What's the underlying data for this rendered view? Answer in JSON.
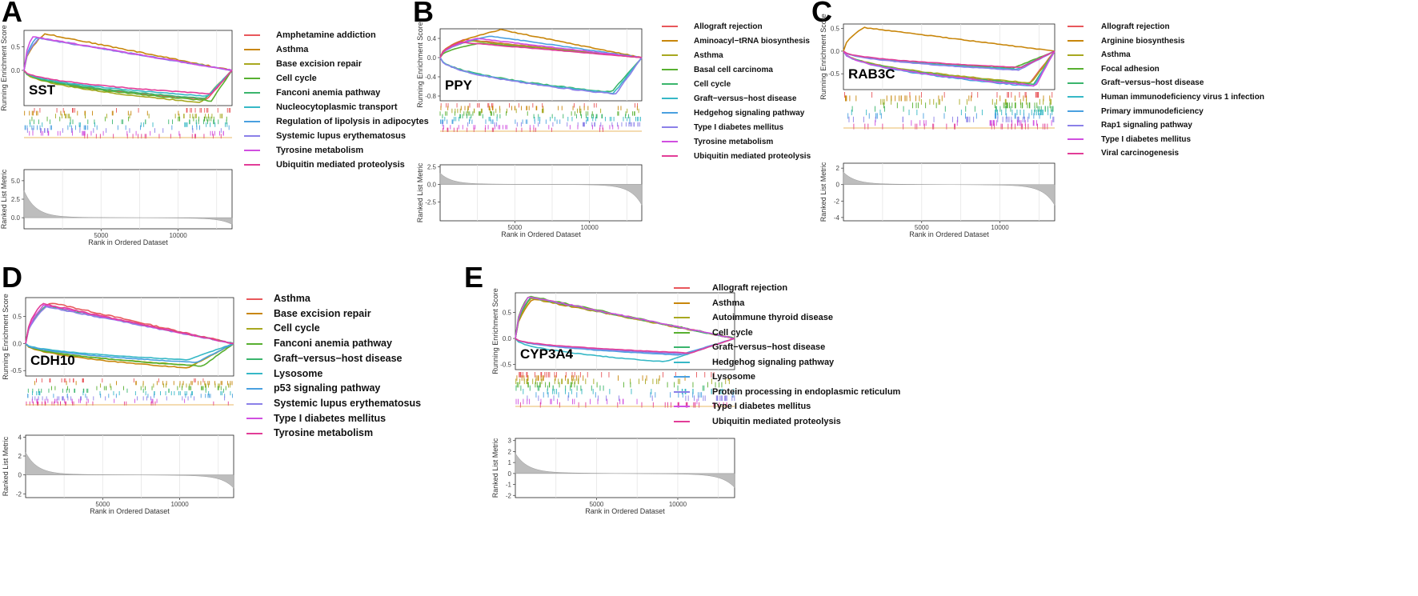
{
  "xlabel": "Rank in Ordered Dataset",
  "ylabel_top": "Running Enrichment Score",
  "ylabel_bottom": "Ranked List Metric",
  "palette": [
    "#e8575b",
    "#c8860b",
    "#a8a820",
    "#58b030",
    "#3ab56c",
    "#36b8c6",
    "#4aa0e0",
    "#8b80e8",
    "#d04fe0",
    "#e23d98"
  ],
  "chart_data": [
    {
      "id": "A",
      "type": "line",
      "title": "SST",
      "letter": "A",
      "x_ticks": [
        5000,
        10000
      ],
      "x_range": [
        0,
        13500
      ],
      "es_ticks": [
        "0.0",
        "0.5"
      ],
      "es_tick_values": [
        0.0,
        0.5
      ],
      "es_range": [
        -0.75,
        0.85
      ],
      "metric_ticks": [
        "0.0",
        "2.5",
        "5.0"
      ],
      "metric_tick_values": [
        0,
        2.5,
        5.0
      ],
      "metric_range": [
        -1.5,
        6.5
      ],
      "series": [
        {
          "name": "Amphetamine addiction",
          "color": "#e8575b",
          "sign": -1,
          "peak": -0.62,
          "peakx": 0.88
        },
        {
          "name": "Asthma",
          "color": "#c8860b",
          "sign": 1,
          "peak": 0.78,
          "peakx": 0.1
        },
        {
          "name": "Base excision repair",
          "color": "#a8a820",
          "sign": -1,
          "peak": -0.68,
          "peakx": 0.85
        },
        {
          "name": "Cell cycle",
          "color": "#58b030",
          "sign": -1,
          "peak": -0.65,
          "peakx": 0.9
        },
        {
          "name": "Fanconi anemia pathway",
          "color": "#3ab56c",
          "sign": -1,
          "peak": -0.6,
          "peakx": 0.87
        },
        {
          "name": "Nucleocytoplasmic transport",
          "color": "#36b8c6",
          "sign": -1,
          "peak": -0.55,
          "peakx": 0.88
        },
        {
          "name": "Regulation of lipolysis in adipocytes",
          "color": "#4aa0e0",
          "sign": 1,
          "peak": 0.7,
          "peakx": 0.06
        },
        {
          "name": "Systemic lupus erythematosus",
          "color": "#8b80e8",
          "sign": 1,
          "peak": 0.68,
          "peakx": 0.07
        },
        {
          "name": "Tyrosine metabolism",
          "color": "#d04fe0",
          "sign": 1,
          "peak": 0.72,
          "peakx": 0.04
        },
        {
          "name": "Ubiquitin mediated proteolysis",
          "color": "#e23d98",
          "sign": -1,
          "peak": -0.5,
          "peakx": 0.9
        }
      ]
    },
    {
      "id": "B",
      "type": "line",
      "title": "PPY",
      "letter": "B",
      "x_ticks": [
        5000,
        10000
      ],
      "x_range": [
        0,
        13500
      ],
      "es_ticks": [
        "-0.8",
        "-0.4",
        "0.0",
        "0.4"
      ],
      "es_tick_values": [
        -0.8,
        -0.4,
        0.0,
        0.4
      ],
      "es_range": [
        -0.9,
        0.6
      ],
      "metric_ticks": [
        "-2.5",
        "0.0",
        "2.5"
      ],
      "metric_tick_values": [
        -2.5,
        0,
        2.5
      ],
      "metric_range": [
        -5.2,
        2.8
      ],
      "series": [
        {
          "name": "Allograft rejection",
          "color": "#e8575b",
          "sign": 1,
          "peak": 0.38,
          "peakx": 0.12
        },
        {
          "name": "Aminoacyl−tRNA biosynthesis",
          "color": "#c8860b",
          "sign": 1,
          "peak": 0.58,
          "peakx": 0.3
        },
        {
          "name": "Asthma",
          "color": "#a8a820",
          "sign": 1,
          "peak": 0.35,
          "peakx": 0.15
        },
        {
          "name": "Basal cell carcinoma",
          "color": "#58b030",
          "sign": 1,
          "peak": 0.3,
          "peakx": 0.2
        },
        {
          "name": "Cell cycle",
          "color": "#3ab56c",
          "sign": -1,
          "peak": -0.72,
          "peakx": 0.85
        },
        {
          "name": "Graft−versus−host disease",
          "color": "#36b8c6",
          "sign": -1,
          "peak": -0.74,
          "peakx": 0.86
        },
        {
          "name": "Hedgehog signaling pathway",
          "color": "#4aa0e0",
          "sign": 1,
          "peak": 0.45,
          "peakx": 0.25
        },
        {
          "name": "Type I diabetes mellitus",
          "color": "#8b80e8",
          "sign": -1,
          "peak": -0.76,
          "peakx": 0.87
        },
        {
          "name": "Tyrosine metabolism",
          "color": "#d04fe0",
          "sign": 1,
          "peak": 0.4,
          "peakx": 0.18
        },
        {
          "name": "Ubiquitin mediated proteolysis",
          "color": "#e23d98",
          "sign": 1,
          "peak": 0.32,
          "peakx": 0.1
        }
      ]
    },
    {
      "id": "C",
      "type": "line",
      "title": "RAB3C",
      "letter": "C",
      "x_ticks": [
        5000,
        10000
      ],
      "x_range": [
        0,
        13500
      ],
      "es_ticks": [
        "-0.5",
        "0.0",
        "0.5"
      ],
      "es_tick_values": [
        -0.5,
        0.0,
        0.5
      ],
      "es_range": [
        -0.85,
        0.6
      ],
      "metric_ticks": [
        "-4",
        "-2",
        "0",
        "2"
      ],
      "metric_tick_values": [
        -4,
        -2,
        0,
        2
      ],
      "metric_range": [
        -4.4,
        2.6
      ],
      "series": [
        {
          "name": "Allograft rejection",
          "color": "#e8575b",
          "sign": -1,
          "peak": -0.72,
          "peakx": 0.88
        },
        {
          "name": "Arginine biosynthesis",
          "color": "#c8860b",
          "sign": 1,
          "peak": 0.52,
          "peakx": 0.1
        },
        {
          "name": "Asthma",
          "color": "#a8a820",
          "sign": -1,
          "peak": -0.7,
          "peakx": 0.89
        },
        {
          "name": "Focal adhesion",
          "color": "#58b030",
          "sign": -1,
          "peak": -0.38,
          "peakx": 0.8
        },
        {
          "name": "Graft−versus−host disease",
          "color": "#3ab56c",
          "sign": -1,
          "peak": -0.74,
          "peakx": 0.9
        },
        {
          "name": "Human immunodeficiency virus 1 infection",
          "color": "#36b8c6",
          "sign": -1,
          "peak": -0.4,
          "peakx": 0.82
        },
        {
          "name": "Primary immunodeficiency",
          "color": "#4aa0e0",
          "sign": -1,
          "peak": -0.78,
          "peakx": 0.9
        },
        {
          "name": "Rap1 signaling pathway",
          "color": "#8b80e8",
          "sign": -1,
          "peak": -0.42,
          "peakx": 0.83
        },
        {
          "name": "Type I diabetes mellitus",
          "color": "#d04fe0",
          "sign": -1,
          "peak": -0.76,
          "peakx": 0.91
        },
        {
          "name": "Viral carcinogenesis",
          "color": "#e23d98",
          "sign": -1,
          "peak": -0.36,
          "peakx": 0.84
        }
      ]
    },
    {
      "id": "D",
      "type": "line",
      "title": "CDH10",
      "letter": "D",
      "x_ticks": [
        5000,
        10000
      ],
      "x_range": [
        0,
        13500
      ],
      "es_ticks": [
        "-0.5",
        "0.0",
        "0.5"
      ],
      "es_tick_values": [
        -0.5,
        0.0,
        0.5
      ],
      "es_range": [
        -0.6,
        0.85
      ],
      "metric_ticks": [
        "-2",
        "0",
        "2",
        "4"
      ],
      "metric_tick_values": [
        -2,
        0,
        2,
        4
      ],
      "metric_range": [
        -2.4,
        4.2
      ],
      "series": [
        {
          "name": "Asthma",
          "color": "#e8575b",
          "sign": 1,
          "peak": 0.76,
          "peakx": 0.12
        },
        {
          "name": "Base excision repair",
          "color": "#c8860b",
          "sign": -1,
          "peak": -0.45,
          "peakx": 0.78
        },
        {
          "name": "Cell cycle",
          "color": "#a8a820",
          "sign": -1,
          "peak": -0.4,
          "peakx": 0.8
        },
        {
          "name": "Fanconi anemia pathway",
          "color": "#58b030",
          "sign": -1,
          "peak": -0.42,
          "peakx": 0.85
        },
        {
          "name": "Graft−versus−host disease",
          "color": "#3ab56c",
          "sign": 1,
          "peak": 0.7,
          "peakx": 0.1
        },
        {
          "name": "Lysosome",
          "color": "#36b8c6",
          "sign": -1,
          "peak": -0.3,
          "peakx": 0.78
        },
        {
          "name": "p53 signaling pathway",
          "color": "#4aa0e0",
          "sign": -1,
          "peak": -0.35,
          "peakx": 0.82
        },
        {
          "name": "Systemic lupus erythematosus",
          "color": "#8b80e8",
          "sign": 1,
          "peak": 0.68,
          "peakx": 0.1
        },
        {
          "name": "Type I diabetes mellitus",
          "color": "#d04fe0",
          "sign": 1,
          "peak": 0.72,
          "peakx": 0.09
        },
        {
          "name": "Tyrosine metabolism",
          "color": "#e23d98",
          "sign": 1,
          "peak": 0.74,
          "peakx": 0.08
        }
      ]
    },
    {
      "id": "E",
      "type": "line",
      "title": "CYP3A4",
      "letter": "E",
      "x_ticks": [
        5000,
        10000
      ],
      "x_range": [
        0,
        13500
      ],
      "es_ticks": [
        "-0.5",
        "0.0",
        "0.5"
      ],
      "es_tick_values": [
        -0.5,
        0.0,
        0.5
      ],
      "es_range": [
        -0.6,
        0.88
      ],
      "metric_ticks": [
        "-2",
        "-1",
        "0",
        "1",
        "2",
        "3"
      ],
      "metric_tick_values": [
        -2,
        -1,
        0,
        1,
        2,
        3
      ],
      "metric_range": [
        -2.2,
        3.2
      ],
      "series": [
        {
          "name": "Allograft rejection",
          "color": "#e8575b",
          "sign": 1,
          "peak": 0.8,
          "peakx": 0.07
        },
        {
          "name": "Asthma",
          "color": "#c8860b",
          "sign": 1,
          "peak": 0.76,
          "peakx": 0.08
        },
        {
          "name": "Autoimmune thyroid disease",
          "color": "#a8a820",
          "sign": 1,
          "peak": 0.78,
          "peakx": 0.07
        },
        {
          "name": "Cell cycle",
          "color": "#58b030",
          "sign": 1,
          "peak": 0.82,
          "peakx": 0.06
        },
        {
          "name": "Graft−versus−host disease",
          "color": "#3ab56c",
          "sign": 1,
          "peak": 0.79,
          "peakx": 0.07
        },
        {
          "name": "Hedgehog signaling pathway",
          "color": "#36b8c6",
          "sign": -1,
          "peak": -0.45,
          "peakx": 0.68
        },
        {
          "name": "Lysosome",
          "color": "#4aa0e0",
          "sign": -1,
          "peak": -0.32,
          "peakx": 0.75
        },
        {
          "name": "Protein processing in endoplasmic reticulum",
          "color": "#8b80e8",
          "sign": -1,
          "peak": -0.3,
          "peakx": 0.78
        },
        {
          "name": "Type I diabetes mellitus",
          "color": "#d04fe0",
          "sign": 1,
          "peak": 0.81,
          "peakx": 0.06
        },
        {
          "name": "Ubiquitin mediated proteolysis",
          "color": "#e23d98",
          "sign": -1,
          "peak": -0.28,
          "peakx": 0.8
        }
      ]
    }
  ]
}
